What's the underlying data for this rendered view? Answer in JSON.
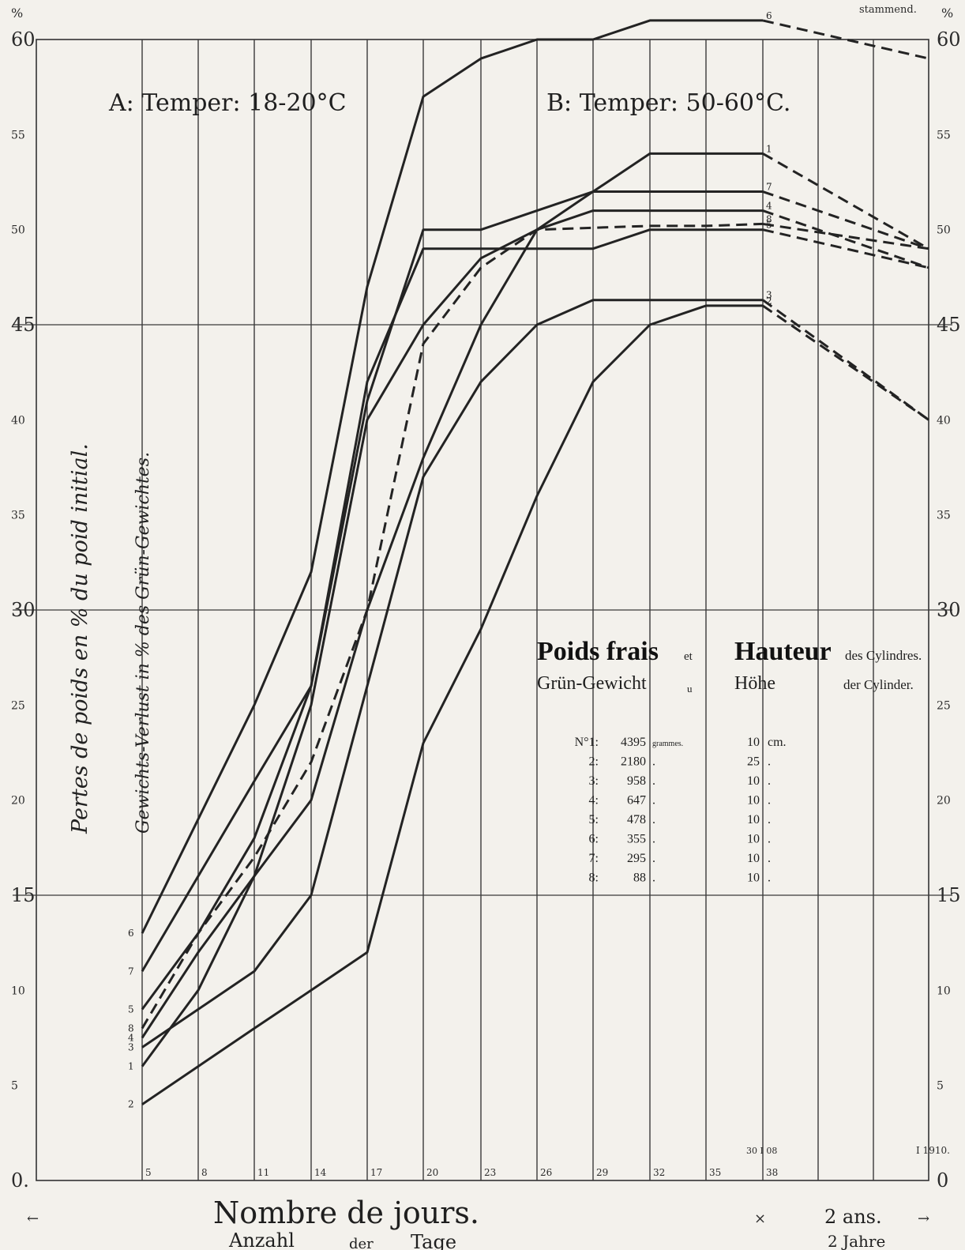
{
  "chart_data": {
    "type": "line",
    "title_top": "stammend.",
    "y_unit_left": "%",
    "y_unit_right": "%",
    "ylim": [
      0,
      60
    ],
    "yticks": [
      {
        "v": 60,
        "label": "60"
      },
      {
        "v": 55,
        "label": "55"
      },
      {
        "v": 50,
        "label": "50"
      },
      {
        "v": 45,
        "label": "45"
      },
      {
        "v": 40,
        "label": "40"
      },
      {
        "v": 35,
        "label": "35"
      },
      {
        "v": 30,
        "label": "30"
      },
      {
        "v": 25,
        "label": "25"
      },
      {
        "v": 20,
        "label": "20"
      },
      {
        "v": 15,
        "label": "15"
      },
      {
        "v": 10,
        "label": "10"
      },
      {
        "v": 5,
        "label": "5"
      },
      {
        "v": 0,
        "label": "0"
      }
    ],
    "y_left_zero_label": "0.",
    "xticks": [
      "5",
      "8",
      "11",
      "14",
      "17",
      "20",
      "23",
      "26",
      "29",
      "32",
      "35",
      "38"
    ],
    "x_extra_ticks": [
      "2 ans."
    ],
    "x_extra_ticks_de": [
      "2 Jahre"
    ],
    "xlabel_fr": "Nombre de jours.",
    "xlabel_de_1": "Anzahl",
    "xlabel_de_2": "der",
    "xlabel_de_3": "Tage",
    "ylabel_fr": "Pertes de poids en % du poid initial.",
    "ylabel_de": "Gewichts-Verlust in % des Grün-Gewichtes.",
    "annotation_A": "A: Temper: 18-20°C",
    "annotation_B": "B: Temper: 50-60°C.",
    "date_left": "30 I 08",
    "date_right": "I 1910.",
    "arrow_left": "←",
    "arrow_right": "→",
    "mark": "×",
    "x_values": [
      5,
      8,
      11,
      14,
      17,
      20,
      23,
      26,
      29,
      32,
      35,
      38
    ],
    "series": [
      {
        "name": "1",
        "values": [
          6,
          10,
          16,
          25,
          40,
          45,
          48.5,
          50,
          52,
          54,
          54,
          54
        ],
        "extension": 49
      },
      {
        "name": "2",
        "values": [
          4,
          6,
          8,
          10,
          12,
          23,
          29,
          36,
          42,
          45,
          46,
          46
        ],
        "extension": 40
      },
      {
        "name": "3",
        "values": [
          7,
          9,
          11,
          15,
          26,
          37,
          42,
          45,
          46.3,
          46.3,
          46.3,
          46.3
        ],
        "extension": 40
      },
      {
        "name": "4",
        "values": [
          7.5,
          12,
          16,
          20,
          30,
          38,
          45,
          50,
          51,
          51,
          51,
          51
        ],
        "extension": 48
      },
      {
        "name": "5",
        "values": [
          9,
          13,
          18,
          26,
          42,
          49,
          49,
          49,
          49,
          50,
          50,
          50
        ],
        "extension": 48
      },
      {
        "name": "6",
        "values": [
          13,
          19,
          25,
          32,
          47,
          57,
          59,
          60,
          60,
          61,
          61,
          61
        ],
        "extension": 59
      },
      {
        "name": "7",
        "values": [
          11,
          16,
          21,
          26,
          41,
          50,
          50,
          51,
          52,
          52,
          52,
          52
        ],
        "extension": 49
      },
      {
        "name": "8",
        "values": [
          8,
          13,
          17,
          22,
          30,
          44,
          48,
          50,
          50.1,
          50.2,
          50.2,
          50.3
        ],
        "extension": 49
      }
    ],
    "left_labels_order": [
      "6",
      "8",
      "7",
      "5",
      "4",
      "3",
      "1",
      "2"
    ],
    "right_labels_order": [
      "6",
      "1",
      "7",
      "4",
      "8",
      "5",
      "3",
      "2"
    ]
  },
  "legend_box": {
    "head_fr_1": "Poids frais",
    "head_fr_et": "et",
    "head_fr_2": "Hauteur",
    "head_fr_3": "des Cylindres.",
    "head_de_1": "Grün-Gewicht",
    "head_de_u": "u",
    "head_de_2": "Höhe",
    "head_de_3": "der Cylinder.",
    "rows": [
      {
        "no": "N°1:",
        "weight": "4395",
        "unit": "grammes.",
        "height": "10",
        "hunit": "cm."
      },
      {
        "no": "2:",
        "weight": "2180",
        "unit": ".",
        "height": "25",
        "hunit": "."
      },
      {
        "no": "3:",
        "weight": "958",
        "unit": ".",
        "height": "10",
        "hunit": "."
      },
      {
        "no": "4:",
        "weight": "647",
        "unit": ".",
        "height": "10",
        "hunit": "."
      },
      {
        "no": "5:",
        "weight": "478",
        "unit": ".",
        "height": "10",
        "hunit": "."
      },
      {
        "no": "6:",
        "weight": "355",
        "unit": ".",
        "height": "10",
        "hunit": "."
      },
      {
        "no": "7:",
        "weight": "295",
        "unit": ".",
        "height": "10",
        "hunit": "."
      },
      {
        "no": "8:",
        "weight": "88",
        "unit": ".",
        "height": "10",
        "hunit": "."
      }
    ]
  }
}
